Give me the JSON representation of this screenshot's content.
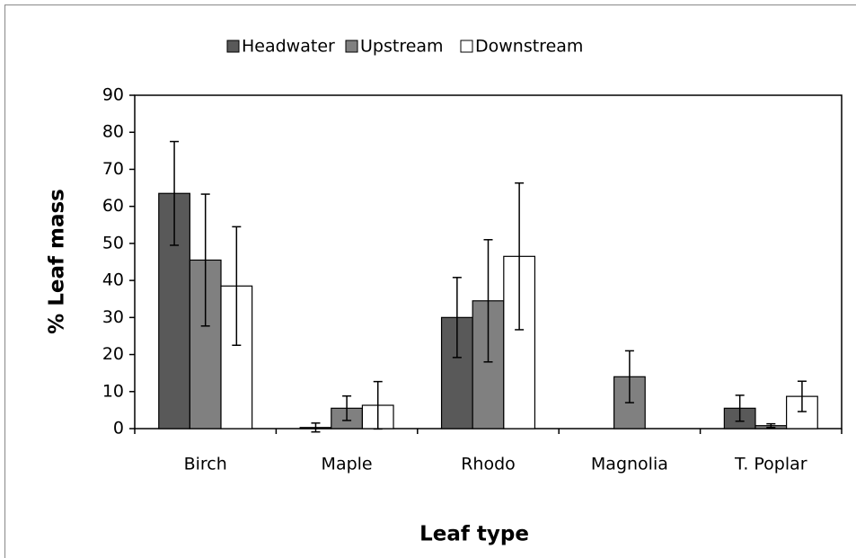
{
  "chart_data": {
    "type": "bar",
    "x_label": "Leaf type",
    "y_label": "% Leaf mass",
    "categories": [
      "Birch",
      "Maple",
      "Rhodo",
      "Magnolia",
      "T. Poplar"
    ],
    "series": [
      {
        "name": "Headwater",
        "color": "#595959",
        "values": [
          63.5,
          0.3,
          30,
          0,
          5.5
        ],
        "errors": [
          14,
          1.2,
          10.8,
          null,
          3.5
        ]
      },
      {
        "name": "Upstream",
        "color": "#808080",
        "values": [
          45.5,
          5.5,
          34.5,
          14,
          0.8
        ],
        "errors": [
          17.8,
          3.3,
          16.5,
          7,
          0.5
        ]
      },
      {
        "name": "Downstream",
        "color": "#ffffff",
        "values": [
          38.5,
          6.3,
          46.5,
          0,
          8.7
        ],
        "errors": [
          16,
          6.4,
          19.8,
          null,
          4.1
        ]
      }
    ],
    "ylim": [
      0,
      90
    ],
    "yticks": [
      0,
      10,
      20,
      30,
      40,
      50,
      60,
      70,
      80,
      90
    ],
    "legend": "top",
    "grid": false
  }
}
